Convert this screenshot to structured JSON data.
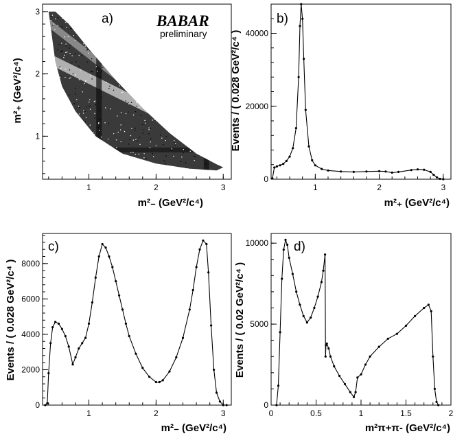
{
  "logo": {
    "text": "BABAR",
    "subtext": "preliminary"
  },
  "chart_data": [
    {
      "type": "scatter",
      "panel_label": "a)",
      "xlabel": "m²₋ (GeV²/c⁴)",
      "ylabel": "m²₊ (GeV²/c⁴)",
      "xlim": [
        0.31,
        3.12
      ],
      "ylim": [
        0.31,
        3.12
      ],
      "xticks": [
        1,
        2,
        3
      ],
      "yticks": [
        1,
        2,
        3
      ],
      "description_series": [
        {
          "name": "",
          "boundary": [
            [
              0.4,
              3.0
            ],
            [
              0.45,
              2.6
            ],
            [
              0.5,
              2.2
            ],
            [
              0.6,
              1.8
            ],
            [
              0.8,
              1.4
            ],
            [
              1.1,
              1.0
            ],
            [
              1.5,
              0.72
            ],
            [
              2.0,
              0.56
            ],
            [
              2.5,
              0.48
            ],
            [
              2.9,
              0.45
            ],
            [
              3.0,
              0.5
            ],
            [
              2.9,
              0.55
            ],
            [
              2.6,
              0.72
            ],
            [
              2.2,
              1.05
            ],
            [
              1.8,
              1.45
            ],
            [
              1.4,
              1.9
            ],
            [
              1.0,
              2.4
            ],
            [
              0.7,
              2.8
            ],
            [
              0.5,
              3.0
            ]
          ]
        }
      ]
    },
    {
      "type": "line",
      "panel_label": "b)",
      "xlabel": "m²₊ (GeV²/c⁴)",
      "ylabel": "Events / ( 0.028 GeV²/c⁴ )",
      "xlim": [
        0.31,
        3.12
      ],
      "ylim": [
        0,
        48000
      ],
      "xticks": [
        1,
        2,
        3
      ],
      "yticks": [
        0,
        20000,
        40000
      ],
      "series": [
        {
          "name": "",
          "x": [
            0.33,
            0.36,
            0.4,
            0.45,
            0.5,
            0.55,
            0.6,
            0.65,
            0.7,
            0.74,
            0.76,
            0.78,
            0.8,
            0.82,
            0.85,
            0.9,
            0.95,
            1.0,
            1.1,
            1.2,
            1.4,
            1.6,
            1.8,
            2.0,
            2.1,
            2.2,
            2.3,
            2.5,
            2.6,
            2.7,
            2.8,
            2.85,
            2.9,
            2.95,
            3.0
          ],
          "y": [
            200,
            3200,
            3500,
            3800,
            4200,
            5000,
            6200,
            8500,
            14000,
            28000,
            42000,
            48000,
            44000,
            33000,
            19000,
            9000,
            5200,
            3800,
            2800,
            2400,
            2100,
            2000,
            2100,
            2200,
            2100,
            1800,
            2000,
            2500,
            2700,
            2600,
            2000,
            1200,
            500,
            100,
            0
          ]
        }
      ]
    },
    {
      "type": "line",
      "panel_label": "c)",
      "xlabel": "m²₋ (GeV²/c⁴)",
      "ylabel": "Events / ( 0.028 GeV²/c⁴ )",
      "xlim": [
        0.31,
        3.12
      ],
      "ylim": [
        0,
        9700
      ],
      "xticks": [
        1,
        2,
        3
      ],
      "yticks": [
        0,
        2000,
        4000,
        6000,
        8000
      ],
      "series": [
        {
          "name": "",
          "x": [
            0.35,
            0.38,
            0.4,
            0.43,
            0.46,
            0.5,
            0.55,
            0.6,
            0.65,
            0.7,
            0.76,
            0.8,
            0.85,
            0.9,
            0.95,
            1.0,
            1.05,
            1.1,
            1.15,
            1.2,
            1.25,
            1.3,
            1.35,
            1.4,
            1.45,
            1.5,
            1.55,
            1.6,
            1.7,
            1.8,
            1.9,
            2.0,
            2.05,
            2.1,
            2.2,
            2.3,
            2.4,
            2.5,
            2.55,
            2.6,
            2.65,
            2.7,
            2.75,
            2.78,
            2.82,
            2.86,
            2.9,
            2.95,
            3.0,
            3.05
          ],
          "y": [
            0,
            100,
            1800,
            3500,
            4400,
            4700,
            4600,
            4300,
            3900,
            3300,
            2300,
            2700,
            3200,
            3500,
            3800,
            4600,
            5800,
            7200,
            8400,
            9100,
            8900,
            8400,
            7800,
            7000,
            6200,
            5400,
            4600,
            3900,
            2900,
            2100,
            1600,
            1300,
            1300,
            1400,
            1900,
            2700,
            3800,
            5400,
            6500,
            7800,
            8800,
            9300,
            9100,
            7500,
            4500,
            2000,
            700,
            200,
            0,
            0
          ]
        }
      ]
    },
    {
      "type": "line",
      "panel_label": "d)",
      "xlabel": "m²π+π- (GeV²/c⁴)",
      "ylabel": "Events / ( 0.02 GeV²/c⁴ )",
      "xlim": [
        0,
        2
      ],
      "ylim": [
        0,
        10600
      ],
      "xticks": [
        0,
        0.5,
        1,
        1.5,
        2
      ],
      "yticks": [
        0,
        5000,
        10000
      ],
      "series": [
        {
          "name": "",
          "x": [
            0.06,
            0.08,
            0.1,
            0.12,
            0.14,
            0.16,
            0.18,
            0.2,
            0.24,
            0.28,
            0.32,
            0.36,
            0.4,
            0.44,
            0.48,
            0.52,
            0.56,
            0.58,
            0.6,
            0.605,
            0.61,
            0.62,
            0.64,
            0.66,
            0.7,
            0.76,
            0.82,
            0.88,
            0.92,
            0.94,
            0.96,
            1.0,
            1.05,
            1.1,
            1.2,
            1.3,
            1.4,
            1.5,
            1.6,
            1.7,
            1.75,
            1.78,
            1.8,
            1.82,
            1.84,
            1.86
          ],
          "y": [
            0,
            1200,
            4500,
            7800,
            9600,
            10200,
            9900,
            9100,
            8100,
            7000,
            6200,
            5500,
            5100,
            5400,
            6000,
            6700,
            7600,
            8300,
            9300,
            3000,
            3700,
            3800,
            3500,
            3000,
            2400,
            1800,
            1300,
            800,
            500,
            800,
            1700,
            1900,
            2500,
            3000,
            3600,
            4100,
            4400,
            4900,
            5500,
            6000,
            6200,
            5800,
            3000,
            1000,
            200,
            0
          ]
        }
      ]
    }
  ]
}
